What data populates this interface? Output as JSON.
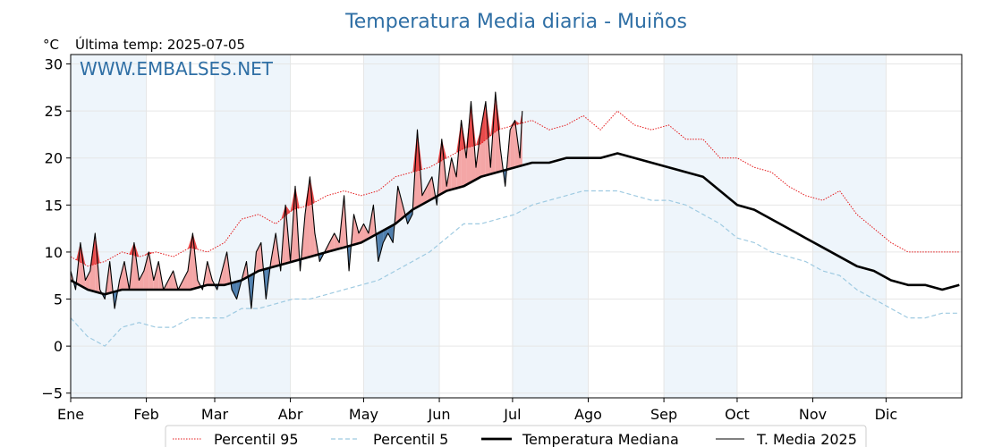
{
  "chart_data": {
    "type": "line",
    "title": "Temperatura Media diaria - Muiños",
    "unit_label": "°C",
    "last_update": "Última temp: 2025-07-05",
    "watermark": "WWW.EMBALSES.NET",
    "ylim": [
      -5.5,
      31
    ],
    "yticks": [
      -5,
      0,
      5,
      10,
      15,
      20,
      25,
      30
    ],
    "ytick_labels": [
      "−5",
      "0",
      "5",
      "10",
      "15",
      "20",
      "25",
      "30"
    ],
    "x_domain_days": [
      1,
      366
    ],
    "month_labels": [
      "Ene",
      "Feb",
      "Mar",
      "Abr",
      "May",
      "Jun",
      "Jul",
      "Ago",
      "Sep",
      "Oct",
      "Nov",
      "Dic"
    ],
    "month_start_days": [
      1,
      32,
      60,
      91,
      121,
      152,
      182,
      213,
      244,
      274,
      305,
      335
    ],
    "grid": true,
    "legend_position": "bottom-center",
    "colors": {
      "p95": "#e41a1c",
      "p5": "#9ecae1",
      "median": "#000000",
      "mean2025": "#000000",
      "above_fill": "#f4a6a6",
      "above_dark_fill": "#e94b4b",
      "below_fill": "#4f7fae",
      "month_band": "#eef5fb",
      "title": "#2f6fa5"
    },
    "series": [
      {
        "name": "Percentil 95",
        "style": "dotted",
        "x": [
          1,
          8,
          15,
          22,
          29,
          36,
          43,
          50,
          57,
          64,
          71,
          78,
          85,
          92,
          99,
          106,
          113,
          120,
          127,
          134,
          141,
          148,
          155,
          162,
          169,
          176,
          183,
          190,
          197,
          204,
          211,
          218,
          225,
          232,
          239,
          246,
          253,
          260,
          267,
          274,
          281,
          288,
          295,
          302,
          309,
          316,
          323,
          330,
          337,
          344,
          351,
          358,
          365
        ],
        "y": [
          9.5,
          8.5,
          9.0,
          10.0,
          9.5,
          10.0,
          9.5,
          10.5,
          10.0,
          11.0,
          13.5,
          14.0,
          13.0,
          14.5,
          15.0,
          16.0,
          16.5,
          16.0,
          16.5,
          18.0,
          18.5,
          19.0,
          20.0,
          21.0,
          21.5,
          23.0,
          23.5,
          24.0,
          23.0,
          23.5,
          24.5,
          23.0,
          25.0,
          23.5,
          23.0,
          23.5,
          22.0,
          22.0,
          20.0,
          20.0,
          19.0,
          18.5,
          17.0,
          16.0,
          15.5,
          16.5,
          14.0,
          12.5,
          11.0,
          10.0,
          10.0,
          10.0,
          10.0
        ]
      },
      {
        "name": "Percentil 5",
        "style": "dashed",
        "x": [
          1,
          8,
          15,
          22,
          29,
          36,
          43,
          50,
          57,
          64,
          71,
          78,
          85,
          92,
          99,
          106,
          113,
          120,
          127,
          134,
          141,
          148,
          155,
          162,
          169,
          176,
          183,
          190,
          197,
          204,
          211,
          218,
          225,
          232,
          239,
          246,
          253,
          260,
          267,
          274,
          281,
          288,
          295,
          302,
          309,
          316,
          323,
          330,
          337,
          344,
          351,
          358,
          365
        ],
        "y": [
          3.0,
          1.0,
          0.0,
          2.0,
          2.5,
          2.0,
          2.0,
          3.0,
          3.0,
          3.0,
          4.0,
          4.0,
          4.5,
          5.0,
          5.0,
          5.5,
          6.0,
          6.5,
          7.0,
          8.0,
          9.0,
          10.0,
          11.5,
          13.0,
          13.0,
          13.5,
          14.0,
          15.0,
          15.5,
          16.0,
          16.5,
          16.5,
          16.5,
          16.0,
          15.5,
          15.5,
          15.0,
          14.0,
          13.0,
          11.5,
          11.0,
          10.0,
          9.5,
          9.0,
          8.0,
          7.5,
          6.0,
          5.0,
          4.0,
          3.0,
          3.0,
          3.5,
          3.5
        ]
      },
      {
        "name": "Temperatura Mediana",
        "style": "thick",
        "x": [
          1,
          8,
          15,
          22,
          29,
          36,
          43,
          50,
          57,
          64,
          71,
          78,
          85,
          92,
          99,
          106,
          113,
          120,
          127,
          134,
          141,
          148,
          155,
          162,
          169,
          176,
          183,
          190,
          197,
          204,
          211,
          218,
          225,
          232,
          239,
          246,
          253,
          260,
          267,
          274,
          281,
          288,
          295,
          302,
          309,
          316,
          323,
          330,
          337,
          344,
          351,
          358,
          365
        ],
        "y": [
          7.0,
          6.0,
          5.5,
          6.0,
          6.0,
          6.0,
          6.0,
          6.0,
          6.5,
          6.5,
          7.0,
          8.0,
          8.5,
          9.0,
          9.5,
          10.0,
          10.5,
          11.0,
          12.0,
          13.0,
          14.5,
          15.5,
          16.5,
          17.0,
          18.0,
          18.5,
          19.0,
          19.5,
          19.5,
          20.0,
          20.0,
          20.0,
          20.5,
          20.0,
          19.5,
          19.0,
          18.5,
          18.0,
          16.5,
          15.0,
          14.5,
          13.5,
          12.5,
          11.5,
          10.5,
          9.5,
          8.5,
          8.0,
          7.0,
          6.5,
          6.5,
          6.0,
          6.5
        ]
      },
      {
        "name": "T. Media 2025",
        "style": "thin",
        "x": [
          1,
          3,
          5,
          7,
          9,
          11,
          13,
          15,
          17,
          19,
          21,
          23,
          25,
          27,
          29,
          31,
          33,
          35,
          37,
          39,
          41,
          43,
          45,
          47,
          49,
          51,
          53,
          55,
          57,
          59,
          61,
          63,
          65,
          67,
          69,
          71,
          73,
          75,
          77,
          79,
          81,
          83,
          85,
          87,
          89,
          91,
          93,
          95,
          97,
          99,
          101,
          103,
          105,
          107,
          109,
          111,
          113,
          115,
          117,
          119,
          121,
          123,
          125,
          127,
          129,
          131,
          133,
          135,
          137,
          139,
          141,
          143,
          145,
          147,
          149,
          151,
          153,
          155,
          157,
          159,
          161,
          163,
          165,
          167,
          169,
          171,
          173,
          175,
          177,
          179,
          181,
          183,
          185,
          186
        ],
        "y": [
          8,
          6,
          11,
          7,
          8,
          12,
          6,
          5,
          9,
          4,
          7,
          9,
          6,
          11,
          7,
          8,
          10,
          7,
          9,
          6,
          7,
          8,
          6,
          7,
          8,
          12,
          7,
          6,
          9,
          7,
          6,
          8,
          10,
          6,
          5,
          7,
          9,
          4,
          10,
          11,
          5,
          9,
          12,
          8,
          15,
          9,
          17,
          8,
          14,
          18,
          12,
          9,
          10,
          11,
          12,
          11,
          16,
          8,
          14,
          12,
          13,
          12,
          15,
          9,
          11,
          12,
          11,
          17,
          15,
          13,
          14,
          23,
          16,
          17,
          18,
          15,
          22,
          17,
          20,
          18,
          24,
          20,
          26,
          19,
          23,
          26,
          19,
          27,
          21,
          17,
          23,
          24,
          20,
          25
        ]
      }
    ]
  }
}
